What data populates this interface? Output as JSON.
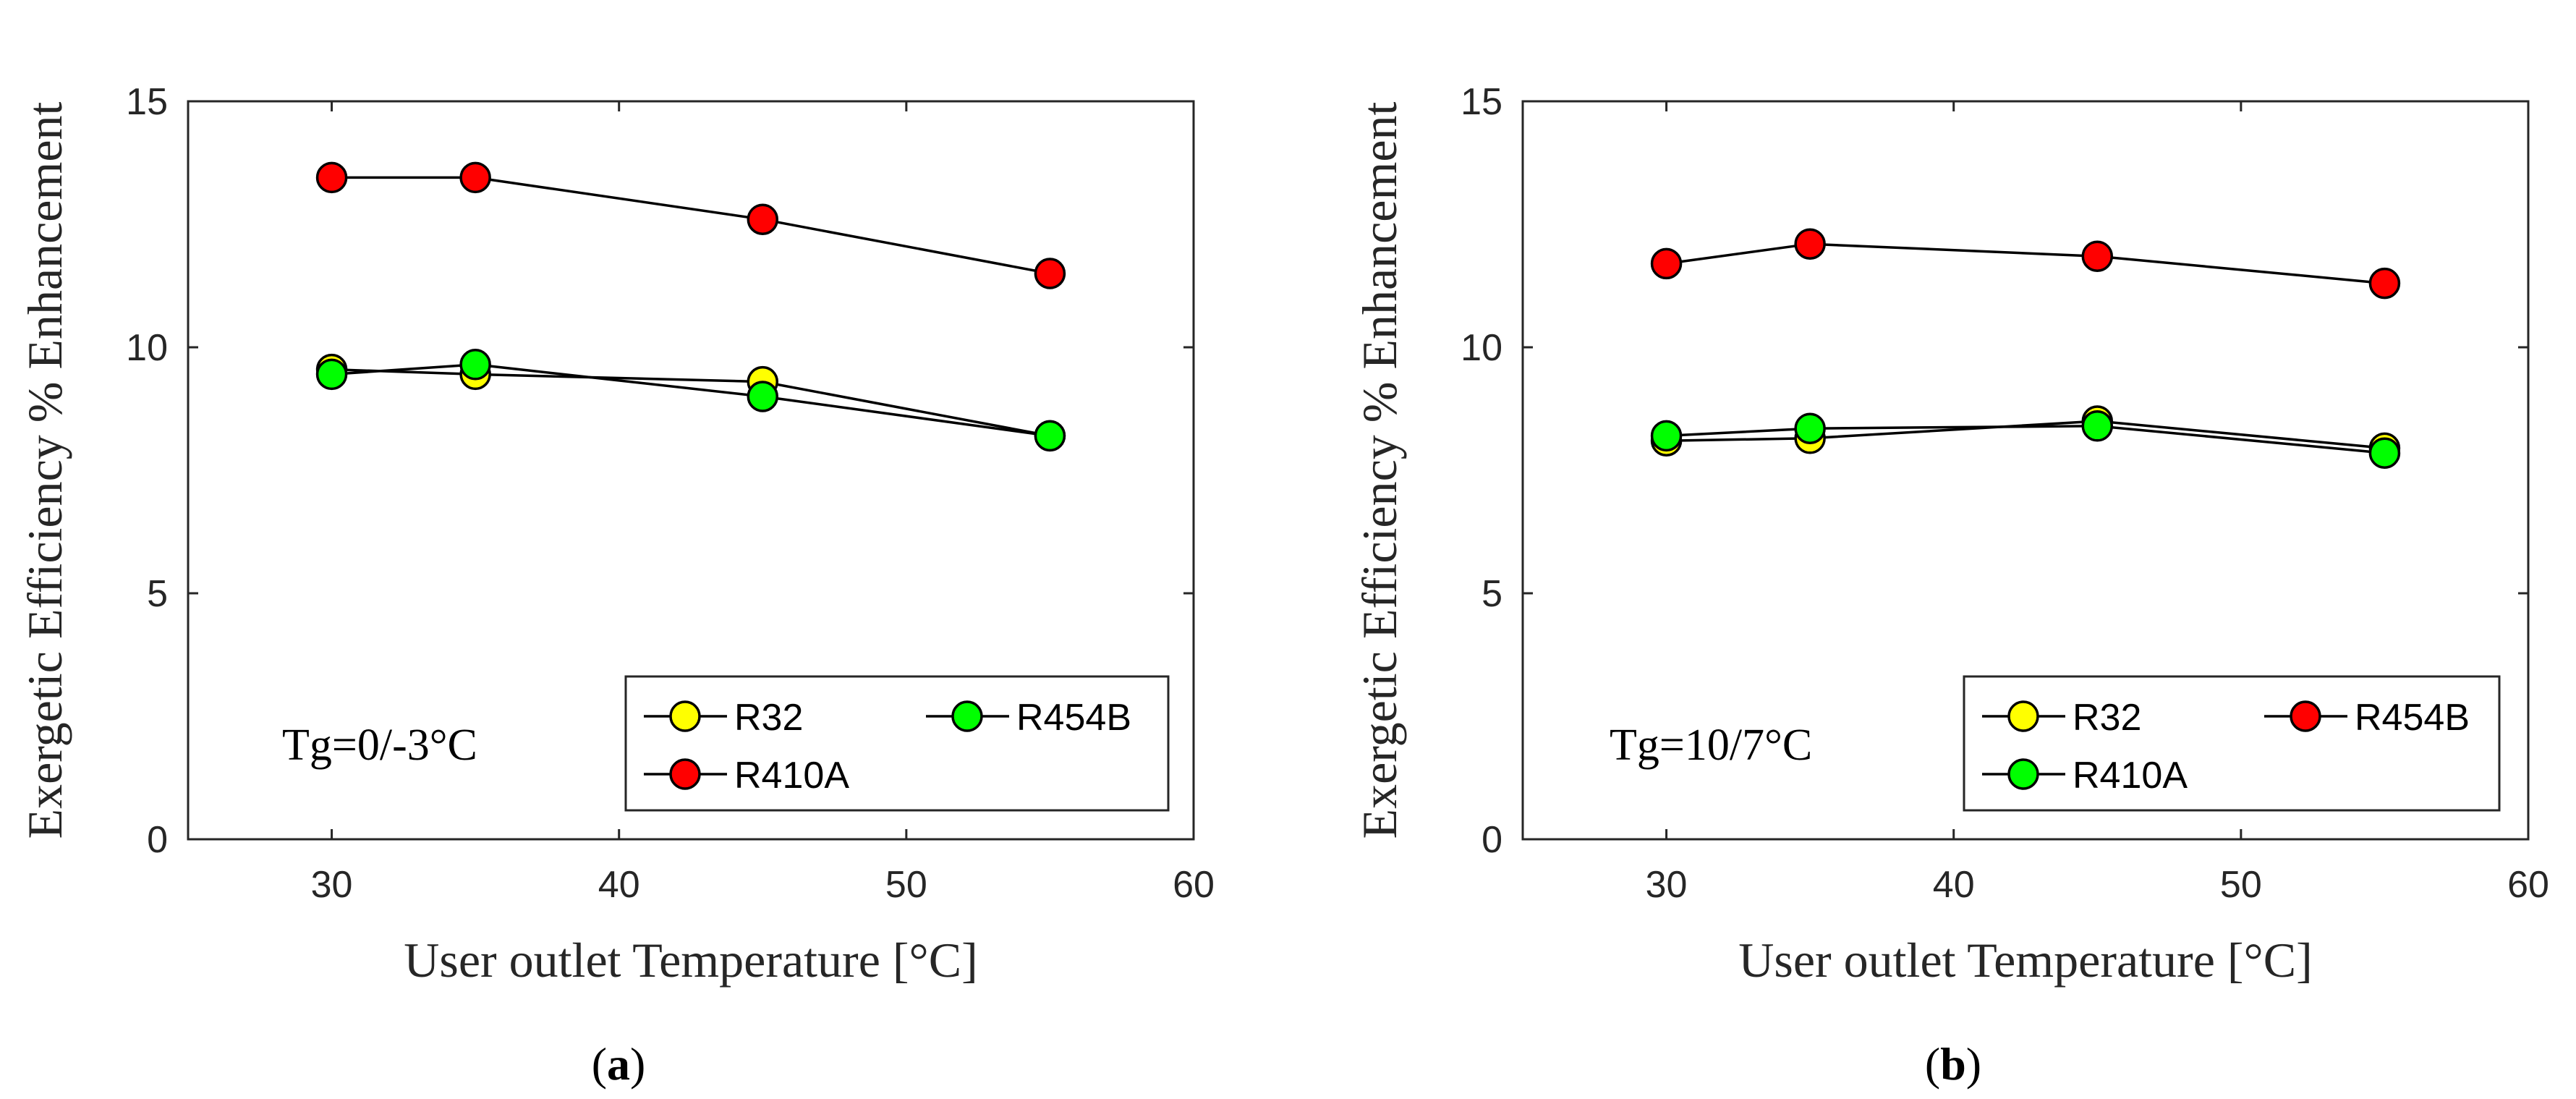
{
  "chart_data": [
    {
      "type": "line",
      "panel": "a",
      "caption_open": "(",
      "caption_letter": "a",
      "caption_close": ")",
      "annotation": "Tg=0/-3°C",
      "xlabel": "User outlet Temperature [°C]",
      "ylabel": "Exergetic Efficiency % Enhancement",
      "xlim": [
        25,
        60
      ],
      "ylim": [
        0,
        15
      ],
      "xticks": [
        30,
        40,
        50,
        60
      ],
      "yticks": [
        0,
        5,
        10,
        15
      ],
      "legend_position": "bottom-right",
      "series": [
        {
          "name": "R32",
          "color": "#ffff00",
          "x": [
            30,
            35,
            45,
            55
          ],
          "values": [
            9.55,
            9.45,
            9.3,
            8.2
          ]
        },
        {
          "name": "R454B",
          "color": "#00ff00",
          "x": [
            30,
            35,
            45,
            55
          ],
          "values": [
            9.45,
            9.65,
            9.0,
            8.2
          ]
        },
        {
          "name": "R410A",
          "color": "#ff0000",
          "x": [
            30,
            35,
            45,
            55
          ],
          "values": [
            13.45,
            13.45,
            12.6,
            11.5
          ]
        }
      ]
    },
    {
      "type": "line",
      "panel": "b",
      "caption_open": "(",
      "caption_letter": "b",
      "caption_close": ")",
      "annotation": "Tg=10/7°C",
      "xlabel": "User outlet Temperature [°C]",
      "ylabel": "Exergetic Efficiency % Enhancement",
      "xlim": [
        25,
        60
      ],
      "ylim": [
        0,
        15
      ],
      "xticks": [
        30,
        40,
        50,
        60
      ],
      "yticks": [
        0,
        5,
        10,
        15
      ],
      "legend_position": "bottom-right",
      "series": [
        {
          "name": "R32",
          "color": "#ffff00",
          "x": [
            30,
            35,
            45,
            55
          ],
          "values": [
            8.1,
            8.15,
            8.5,
            7.95
          ]
        },
        {
          "name": "R454B",
          "color": "#ff0000",
          "x": [
            30,
            35,
            45,
            55
          ],
          "values": [
            11.7,
            12.1,
            11.85,
            11.3
          ]
        },
        {
          "name": "R410A",
          "color": "#00ff00",
          "x": [
            30,
            35,
            45,
            55
          ],
          "values": [
            8.2,
            8.35,
            8.4,
            7.85
          ]
        }
      ]
    }
  ]
}
